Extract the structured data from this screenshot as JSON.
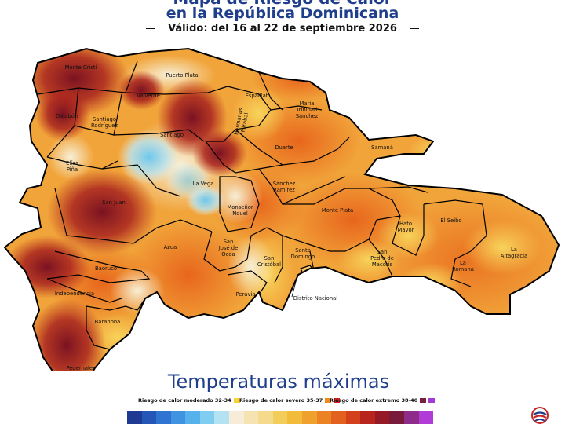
{
  "header": {
    "title_line1": "Mapa de Riesgo de Calor",
    "title_line2": "en la República Dominicana",
    "validity": "Válido: del 16  al 22 de septiembre 2026"
  },
  "provinces": [
    {
      "id": "monte-cristi",
      "label": "Monte Cristi"
    },
    {
      "id": "puerto-plata",
      "label": "Puerto Plata"
    },
    {
      "id": "valverde",
      "label": "Valverde"
    },
    {
      "id": "espaillat",
      "label": "Espaillat"
    },
    {
      "id": "maria-trinidad-sanchez",
      "label": "María Trinidad Sánchez"
    },
    {
      "id": "dajabon",
      "label": "Dajabón"
    },
    {
      "id": "santiago-rodriguez",
      "label": "Santiago Rodríguez"
    },
    {
      "id": "santiago",
      "label": "Santiago"
    },
    {
      "id": "hermanas-mirabal",
      "label": "Hermanas Mirabal"
    },
    {
      "id": "duarte",
      "label": "Duarte"
    },
    {
      "id": "samana",
      "label": "Samaná"
    },
    {
      "id": "elias-pina",
      "label": "Elías Piña"
    },
    {
      "id": "la-vega",
      "label": "La Vega"
    },
    {
      "id": "sanchez-ramirez",
      "label": "Sánchez Ramírez"
    },
    {
      "id": "san-juan",
      "label": "San Juan"
    },
    {
      "id": "monsenor-nouel",
      "label": "Monseñor Nouel"
    },
    {
      "id": "monte-plata",
      "label": "Monte Plata"
    },
    {
      "id": "hato-mayor",
      "label": "Hato Mayor"
    },
    {
      "id": "el-seibo",
      "label": "El Seibo"
    },
    {
      "id": "azua",
      "label": "Azua"
    },
    {
      "id": "san-jose-de-ocoa",
      "label": "San José de Ocoa"
    },
    {
      "id": "san-cristobal",
      "label": "San Cristóbal"
    },
    {
      "id": "santo-domingo",
      "label": "Santo Domingo"
    },
    {
      "id": "san-pedro-de-macoris",
      "label": "San Pedro de Macorís"
    },
    {
      "id": "la-altagracia",
      "label": "La Altagracia"
    },
    {
      "id": "la-romana",
      "label": "La Romana"
    },
    {
      "id": "baoruco",
      "label": "Baoruco"
    },
    {
      "id": "independencia",
      "label": "Independencia"
    },
    {
      "id": "peravia",
      "label": "Peravia"
    },
    {
      "id": "distrito-nacional",
      "label": "Distrito Nacional"
    },
    {
      "id": "barahona",
      "label": "Barahona"
    },
    {
      "id": "pedernales",
      "label": "Pedernales"
    }
  ],
  "temperature_title": "Temperaturas máximas",
  "legend": [
    {
      "label": "Riesgo de calor moderado 32-34",
      "colors": [
        "#f7d23a"
      ]
    },
    {
      "label": "Riesgo de calor severo 35-37",
      "colors": [
        "#f08a1c",
        "#d81e1e"
      ]
    },
    {
      "label": "Riesgo de calor extremo 38-40",
      "colors": [
        "#7a1f3d",
        "#a23bd6"
      ]
    }
  ],
  "color_scale": [
    "#1f3a93",
    "#2456b8",
    "#2f74d0",
    "#3f93e0",
    "#55b2ea",
    "#7fcdf0",
    "#b3e3f3",
    "#f6ecd8",
    "#f5e3b3",
    "#f5da8c",
    "#f3cd5a",
    "#f2bb3a",
    "#f0a02c",
    "#eb8223",
    "#e2611e",
    "#d2401c",
    "#b7251c",
    "#951a26",
    "#7a1a3a",
    "#8e2c8a",
    "#b13bd6"
  ]
}
